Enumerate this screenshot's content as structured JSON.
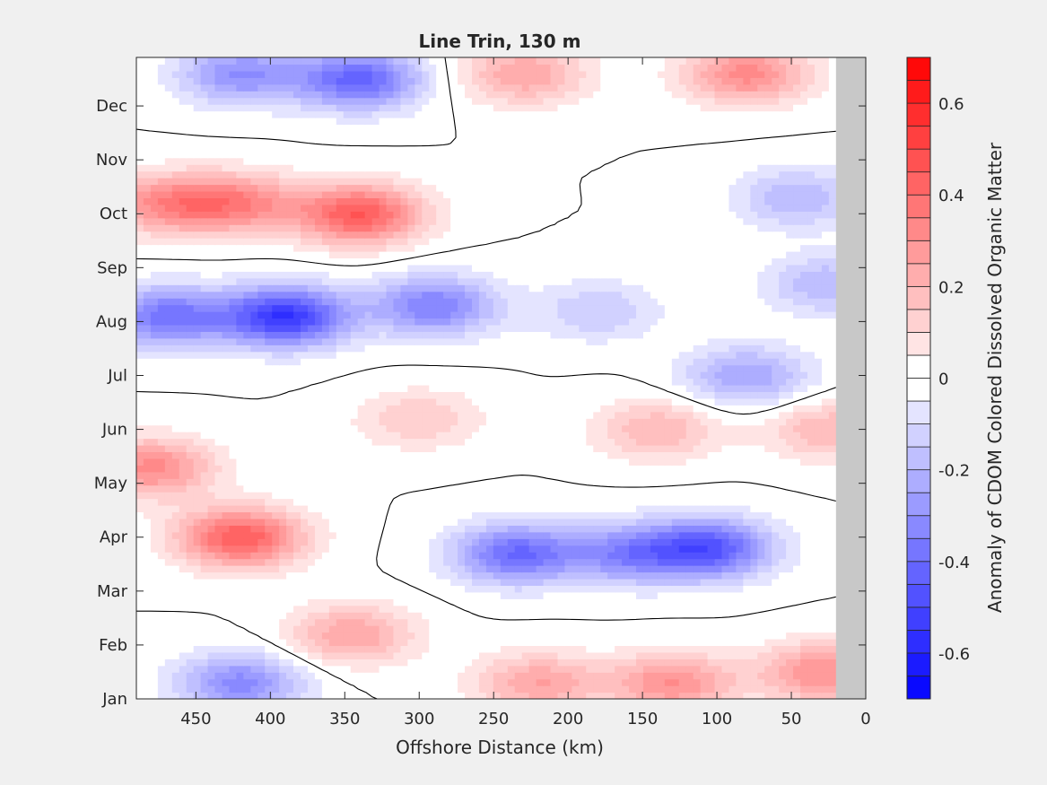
{
  "window": {
    "background": "#f0f0f0"
  },
  "chart_data": {
    "type": "heatmap",
    "title": "Line Trin, 130 m",
    "xlabel": "Offshore Distance (km)",
    "ylabel": "",
    "colorbar_label": "Anomaly of CDOM Colored Dissolved Organic Matter",
    "x_ticks": [
      "450",
      "400",
      "350",
      "300",
      "250",
      "200",
      "150",
      "100",
      "50",
      "0"
    ],
    "x_tick_values": [
      450,
      400,
      350,
      300,
      250,
      200,
      150,
      100,
      50,
      0
    ],
    "xlim": [
      490,
      0
    ],
    "x_reversed": true,
    "y_ticks": [
      "Jan",
      "Feb",
      "Mar",
      "Apr",
      "May",
      "Jun",
      "Jul",
      "Aug",
      "Sep",
      "Oct",
      "Nov",
      "Dec"
    ],
    "y_tick_values": [
      1,
      2,
      3,
      4,
      5,
      6,
      7,
      8,
      9,
      10,
      11,
      12
    ],
    "ylim": [
      1,
      12.9
    ],
    "clim": [
      -0.7,
      0.7
    ],
    "colorbar_ticks": [
      "-0.6",
      "-0.4",
      "-0.2",
      "0",
      "0.2",
      "0.4",
      "0.6"
    ],
    "colorbar_tick_values": [
      -0.6,
      -0.4,
      -0.2,
      0,
      0.2,
      0.4,
      0.6
    ],
    "color_levels": 28,
    "colormap": {
      "negative": "#0000ff",
      "zero": "#ffffff",
      "positive": "#ff0000"
    },
    "no_data_region": {
      "x_range": [
        20,
        0
      ],
      "color": "#c8c8c8"
    },
    "contour_level": 0,
    "grid": false,
    "anomaly_features": [
      {
        "x": 340,
        "month": 10.0,
        "value": 0.45
      },
      {
        "x": 420,
        "month": 10.2,
        "value": 0.3
      },
      {
        "x": 470,
        "month": 10.2,
        "value": 0.3
      },
      {
        "x": 390,
        "month": 8.1,
        "value": -0.55
      },
      {
        "x": 470,
        "month": 8.1,
        "value": -0.38
      },
      {
        "x": 290,
        "month": 8.3,
        "value": -0.35
      },
      {
        "x": 180,
        "month": 8.2,
        "value": -0.15
      },
      {
        "x": 420,
        "month": 4.0,
        "value": 0.45
      },
      {
        "x": 480,
        "month": 5.3,
        "value": 0.32
      },
      {
        "x": 235,
        "month": 3.7,
        "value": -0.4
      },
      {
        "x": 105,
        "month": 3.8,
        "value": -0.45
      },
      {
        "x": 160,
        "month": 3.7,
        "value": -0.3
      },
      {
        "x": 340,
        "month": 12.5,
        "value": -0.42
      },
      {
        "x": 420,
        "month": 12.6,
        "value": -0.3
      },
      {
        "x": 80,
        "month": 12.6,
        "value": 0.32
      },
      {
        "x": 230,
        "month": 12.6,
        "value": 0.25
      },
      {
        "x": 130,
        "month": 1.3,
        "value": 0.3
      },
      {
        "x": 220,
        "month": 1.3,
        "value": 0.25
      },
      {
        "x": 30,
        "month": 1.5,
        "value": 0.3
      },
      {
        "x": 420,
        "month": 1.3,
        "value": -0.32
      },
      {
        "x": 345,
        "month": 2.2,
        "value": 0.25
      },
      {
        "x": 140,
        "month": 6.0,
        "value": 0.2
      },
      {
        "x": 300,
        "month": 6.2,
        "value": 0.15
      },
      {
        "x": 25,
        "month": 6.0,
        "value": 0.2
      },
      {
        "x": 80,
        "month": 7.0,
        "value": -0.25
      },
      {
        "x": 25,
        "month": 8.7,
        "value": -0.2
      },
      {
        "x": 45,
        "month": 10.3,
        "value": -0.2
      }
    ]
  }
}
